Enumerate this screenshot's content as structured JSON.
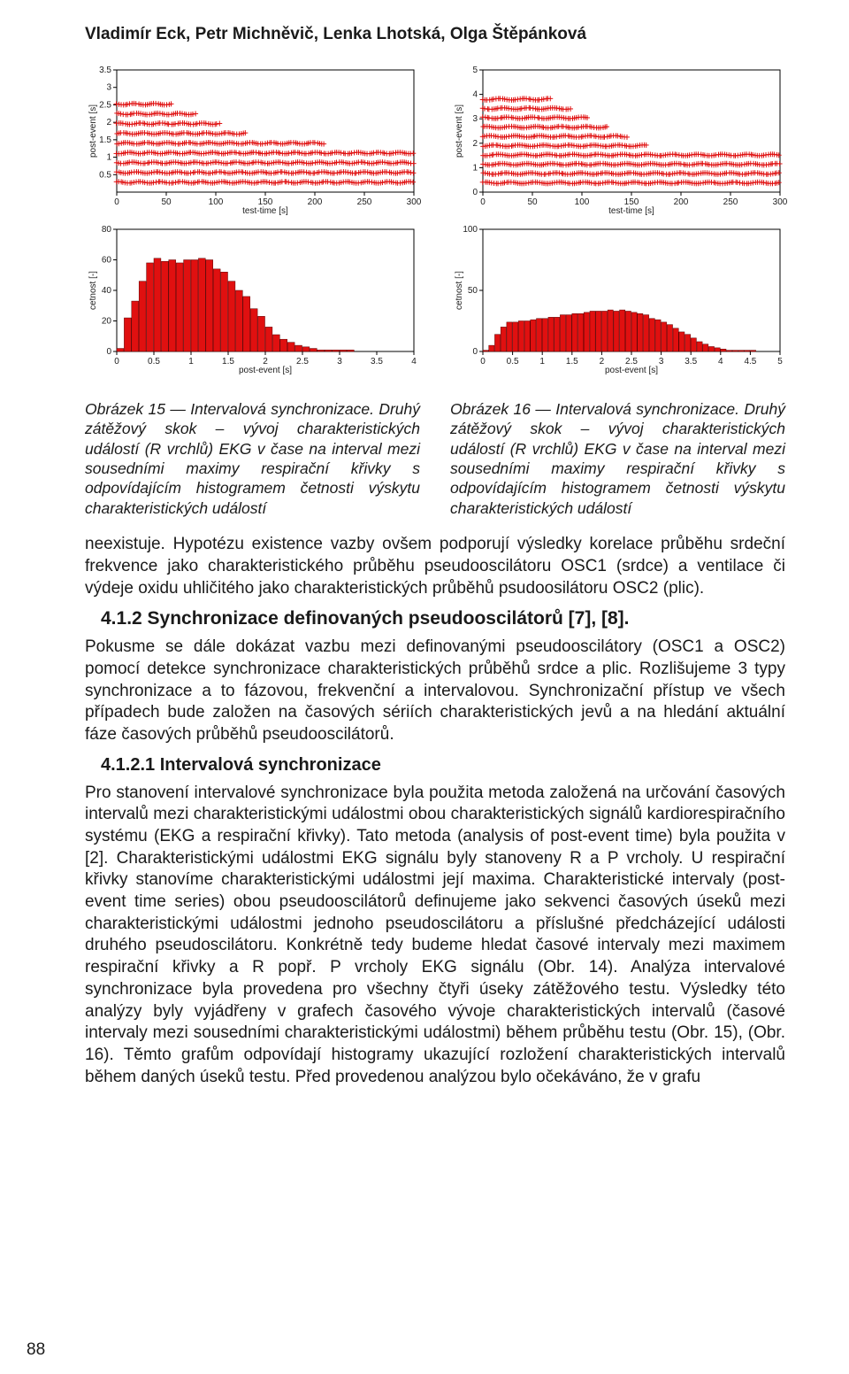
{
  "running_head": "Vladimír Eck, Petr Michněvič, Lenka Lhotská, Olga Štěpánková",
  "figures": {
    "scatter_left": {
      "type": "scatter",
      "xlim": [
        0,
        300
      ],
      "ylim": [
        0,
        3.5
      ],
      "xticks": [
        0,
        50,
        100,
        150,
        200,
        250,
        300
      ],
      "yticks": [
        0.5,
        1,
        1.5,
        2,
        2.5,
        3,
        3.5
      ],
      "xlabel": "test-time [s]",
      "ylabel": "post-event [s]",
      "marker": "+",
      "marker_size": 3,
      "marker_color": "#e01010",
      "label_fontsize": 9,
      "tick_fontsize": 9,
      "background_color": "#ffffff",
      "axis_color": "#000000"
    },
    "scatter_right": {
      "type": "scatter",
      "xlim": [
        0,
        300
      ],
      "ylim": [
        0,
        5
      ],
      "xticks": [
        0,
        50,
        100,
        150,
        200,
        250,
        300
      ],
      "yticks": [
        0,
        1,
        2,
        3,
        4,
        5
      ],
      "xlabel": "test-time [s]",
      "ylabel": "post-event [s]",
      "marker": "+",
      "marker_size": 3,
      "marker_color": "#e01010",
      "label_fontsize": 9,
      "tick_fontsize": 9,
      "background_color": "#ffffff",
      "axis_color": "#000000"
    },
    "hist_left": {
      "type": "histogram",
      "xlim": [
        0,
        4
      ],
      "ylim": [
        0,
        80
      ],
      "xticks": [
        0,
        0.5,
        1,
        1.5,
        2,
        2.5,
        3,
        3.5,
        4
      ],
      "yticks": [
        0,
        20,
        40,
        60,
        80
      ],
      "bin_width": 0.1,
      "bin_edges_start": 0.0,
      "values": [
        2,
        22,
        33,
        46,
        58,
        61,
        59,
        60,
        58,
        60,
        60,
        61,
        60,
        54,
        52,
        46,
        40,
        36,
        28,
        23,
        16,
        11,
        8,
        6,
        4,
        3,
        2,
        1,
        1,
        1,
        1,
        1,
        0,
        0,
        0,
        0,
        0,
        0,
        0,
        0
      ],
      "bar_color": "#e01010",
      "edge_color": "#5a0000",
      "xlabel": "post-event [s]",
      "ylabel": "cetnost [-]",
      "label_fontsize": 9,
      "tick_fontsize": 9,
      "background_color": "#ffffff",
      "axis_color": "#000000"
    },
    "hist_right": {
      "type": "histogram",
      "xlim": [
        0,
        5
      ],
      "ylim": [
        0,
        100
      ],
      "xticks": [
        0,
        0.5,
        1,
        1.5,
        2,
        2.5,
        3,
        3.5,
        4,
        4.5,
        5
      ],
      "yticks": [
        0,
        50,
        100
      ],
      "bin_width": 0.1,
      "bin_edges_start": 0.0,
      "values": [
        1,
        5,
        14,
        20,
        24,
        24,
        25,
        25,
        26,
        27,
        27,
        28,
        28,
        30,
        30,
        31,
        31,
        32,
        33,
        33,
        33,
        34,
        33,
        34,
        33,
        32,
        31,
        30,
        27,
        26,
        24,
        22,
        19,
        16,
        14,
        11,
        8,
        6,
        4,
        3,
        2,
        1,
        1,
        1,
        1,
        1,
        0,
        0,
        0,
        0
      ],
      "bar_color": "#e01010",
      "edge_color": "#5a0000",
      "xlabel": "post-event [s]",
      "ylabel": "cetnost [-]",
      "label_fontsize": 9,
      "tick_fontsize": 9,
      "background_color": "#ffffff",
      "axis_color": "#000000"
    }
  },
  "caption_left": "Obrázek 15 — Intervalová synchronizace. Druhý zátěžový skok – vývoj charakteristických událostí (R vrchlů) EKG v čase na interval mezi sousedními maximy respirační křivky s odpovídajícím histogramem četnosti výskytu charakteristických událostí",
  "caption_right": "Obrázek 16 — Intervalová synchronizace. Druhý zátěžový skok – vývoj charakteristických událostí (R vrchlů) EKG v čase na interval mezi sousedními maximy respirační křivky s odpovídajícím histogramem četnosti výskytu charakteristických událostí",
  "para1": "neexistuje. Hypotézu existence vazby ovšem podporují výsledky korelace průběhu srdeční frekvence jako charakteristického průběhu pseudooscilátoru OSC1 (srdce) a ventilace či výdeje oxidu uhličitého jako charakteristických průběhů psudoosilátoru OSC2 (plic).",
  "heading412": "4.1.2 Synchronizace definovaných pseudooscilátorů [7], [8].",
  "para2": "Pokusme se dále dokázat vazbu mezi definovanými pseudooscilátory (OSC1 a OSC2) pomocí detekce synchronizace charakteristických průběhů srdce a plic. Rozlišujeme 3 typy synchronizace a to fázovou, frekvenční a intervalovou. Synchronizační přístup ve všech případech bude založen na časových sériích charakteristických jevů a na hledání aktuální fáze časových průběhů pseudooscilátorů.",
  "heading4121": "4.1.2.1 Intervalová synchronizace",
  "para3": "Pro stanovení intervalové synchronizace byla použita metoda založená na určování časových intervalů mezi charakteristickými událostmi obou charakteristických signálů kardiorespiračního systému (EKG a respirační křivky). Tato metoda (analysis of post-event time) byla použita v [2]. Charakteristickými událostmi EKG signálu byly stanoveny R a P vrcholy. U respirační křivky stanovíme charakteristickými událostmi její maxima. Charakteristické intervaly (post-event time series) obou pseudooscilátorů definujeme jako sekvenci časových úseků mezi charakteristickými událostmi jednoho pseudoscilátoru a příslušné předcházející události druhého pseudoscilátoru. Konkrétně tedy budeme hledat časové intervaly mezi maximem respirační křivky a R popř. P vrcholy EKG signálu (Obr. 14). Analýza intervalové synchronizace byla provedena pro všechny čtyři úseky zátěžového testu. Výsledky této analýzy byly vyjádřeny v grafech časového vývoje charakteristických intervalů (časové intervaly mezi sousedními charakteristickými událostmi) během průběhu testu (Obr. 15), (Obr. 16). Těmto grafům odpovídají histogramy ukazující rozložení charakteristických intervalů během daných úseků testu. Před provedenou analýzou bylo očekáváno, že v grafu",
  "page_number": "88"
}
